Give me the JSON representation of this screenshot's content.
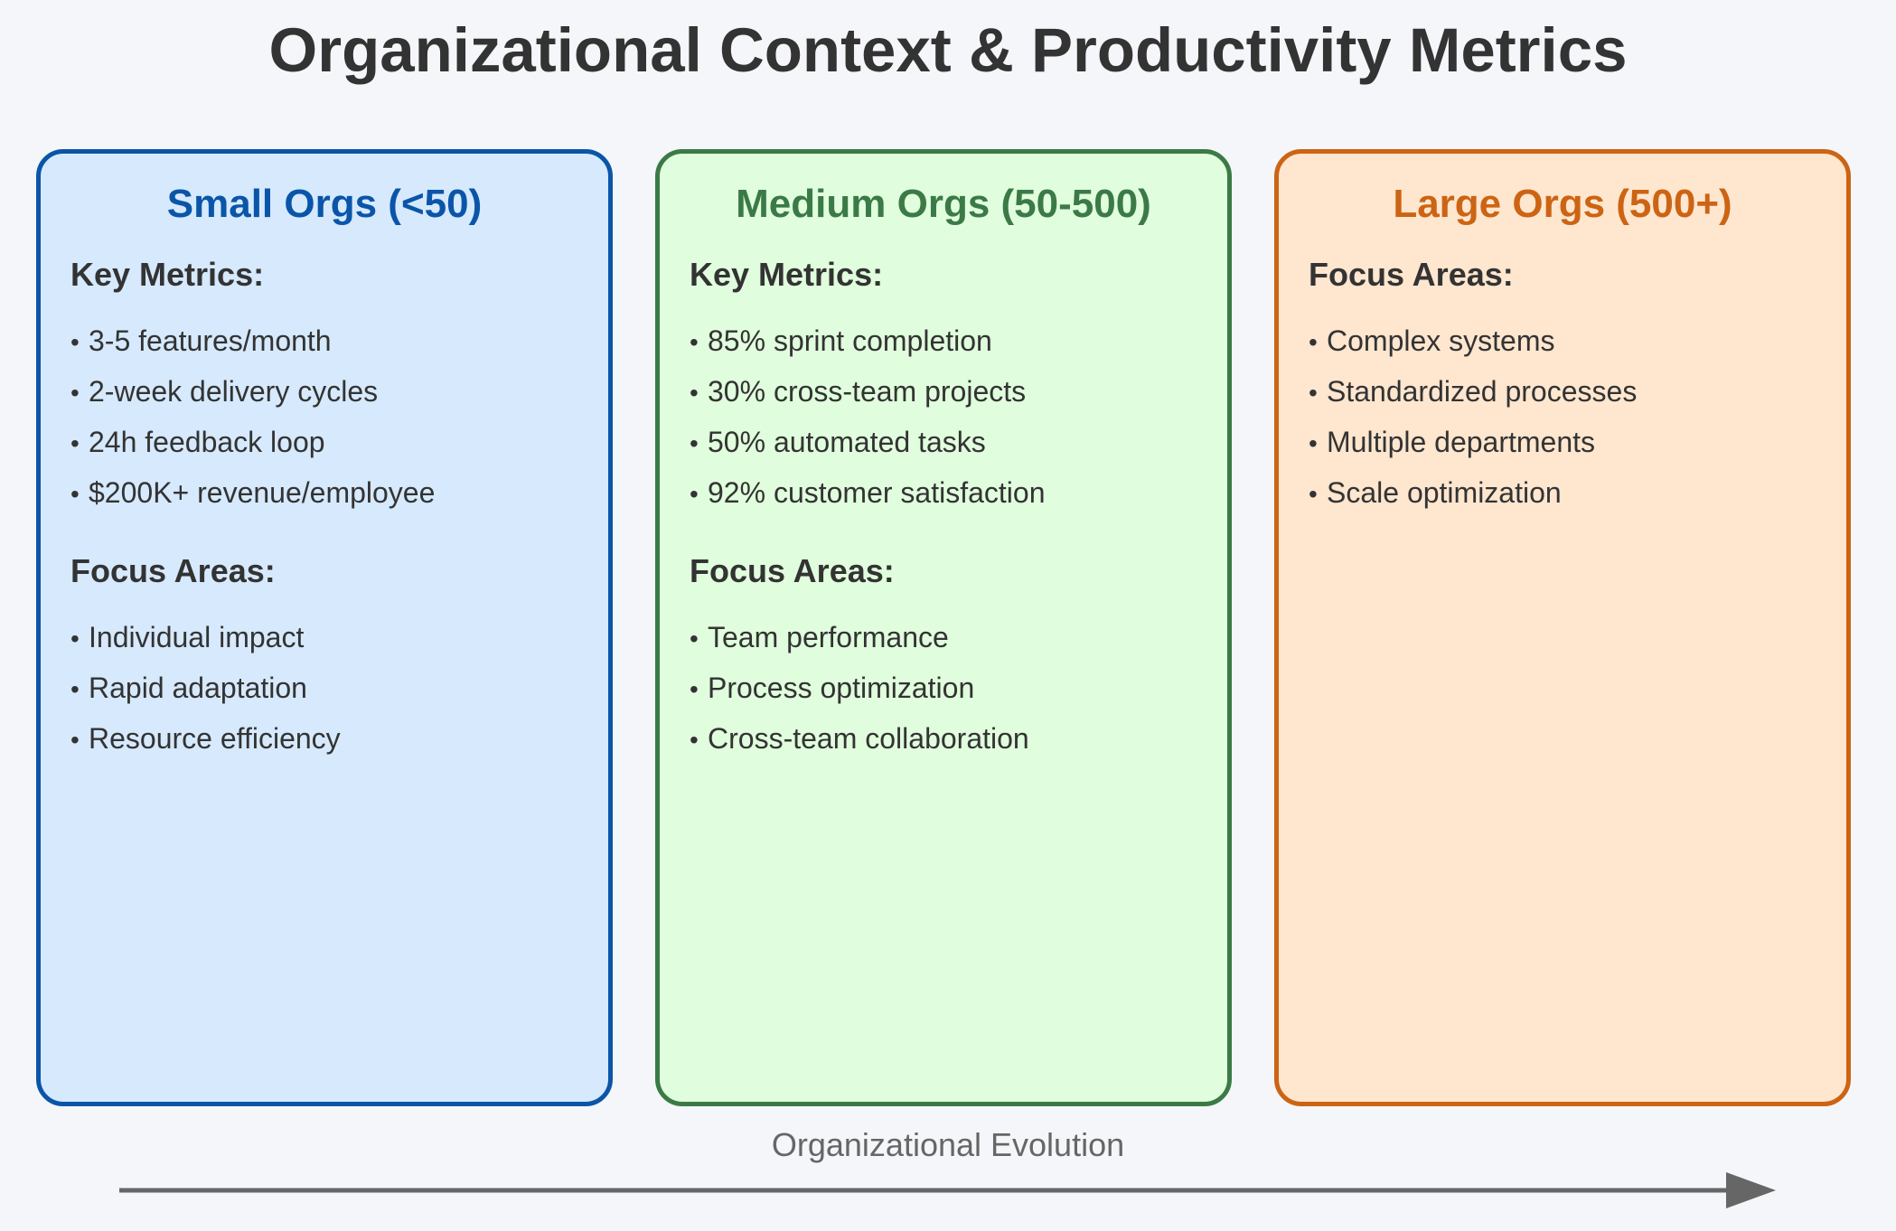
{
  "title": "Organizational Context & Productivity Metrics",
  "colors": {
    "background": "#f4f6f9",
    "small": {
      "border": "#0a55a8",
      "fill": "#d6e9fd",
      "title": "#0a55a8"
    },
    "medium": {
      "border": "#3b7a47",
      "fill": "#e0fedd",
      "title": "#3b7a47"
    },
    "large": {
      "border": "#cc6413",
      "fill": "#fee6cf",
      "title": "#cc6413"
    },
    "arrow": "#666666"
  },
  "cards": {
    "small": {
      "title": "Small Orgs (<50)",
      "section1": {
        "heading": "Key Metrics:",
        "items": [
          "3-5 features/month",
          "2-week delivery cycles",
          "24h feedback loop",
          "$200K+ revenue/employee"
        ]
      },
      "section2": {
        "heading": "Focus Areas:",
        "items": [
          "Individual impact",
          "Rapid adaptation",
          "Resource efficiency"
        ]
      }
    },
    "medium": {
      "title": "Medium Orgs (50-500)",
      "section1": {
        "heading": "Key Metrics:",
        "items": [
          "85% sprint completion",
          "30% cross-team projects",
          "50% automated tasks",
          "92% customer satisfaction"
        ]
      },
      "section2": {
        "heading": "Focus Areas:",
        "items": [
          "Team performance",
          "Process optimization",
          "Cross-team collaboration"
        ]
      }
    },
    "large": {
      "title": "Large Orgs (500+)",
      "section1": {
        "heading": "Focus Areas:",
        "items": [
          "Complex systems",
          "Standardized processes",
          "Multiple departments",
          "Scale optimization"
        ]
      }
    }
  },
  "evolution": {
    "label": "Organizational Evolution"
  },
  "bullet": "•"
}
